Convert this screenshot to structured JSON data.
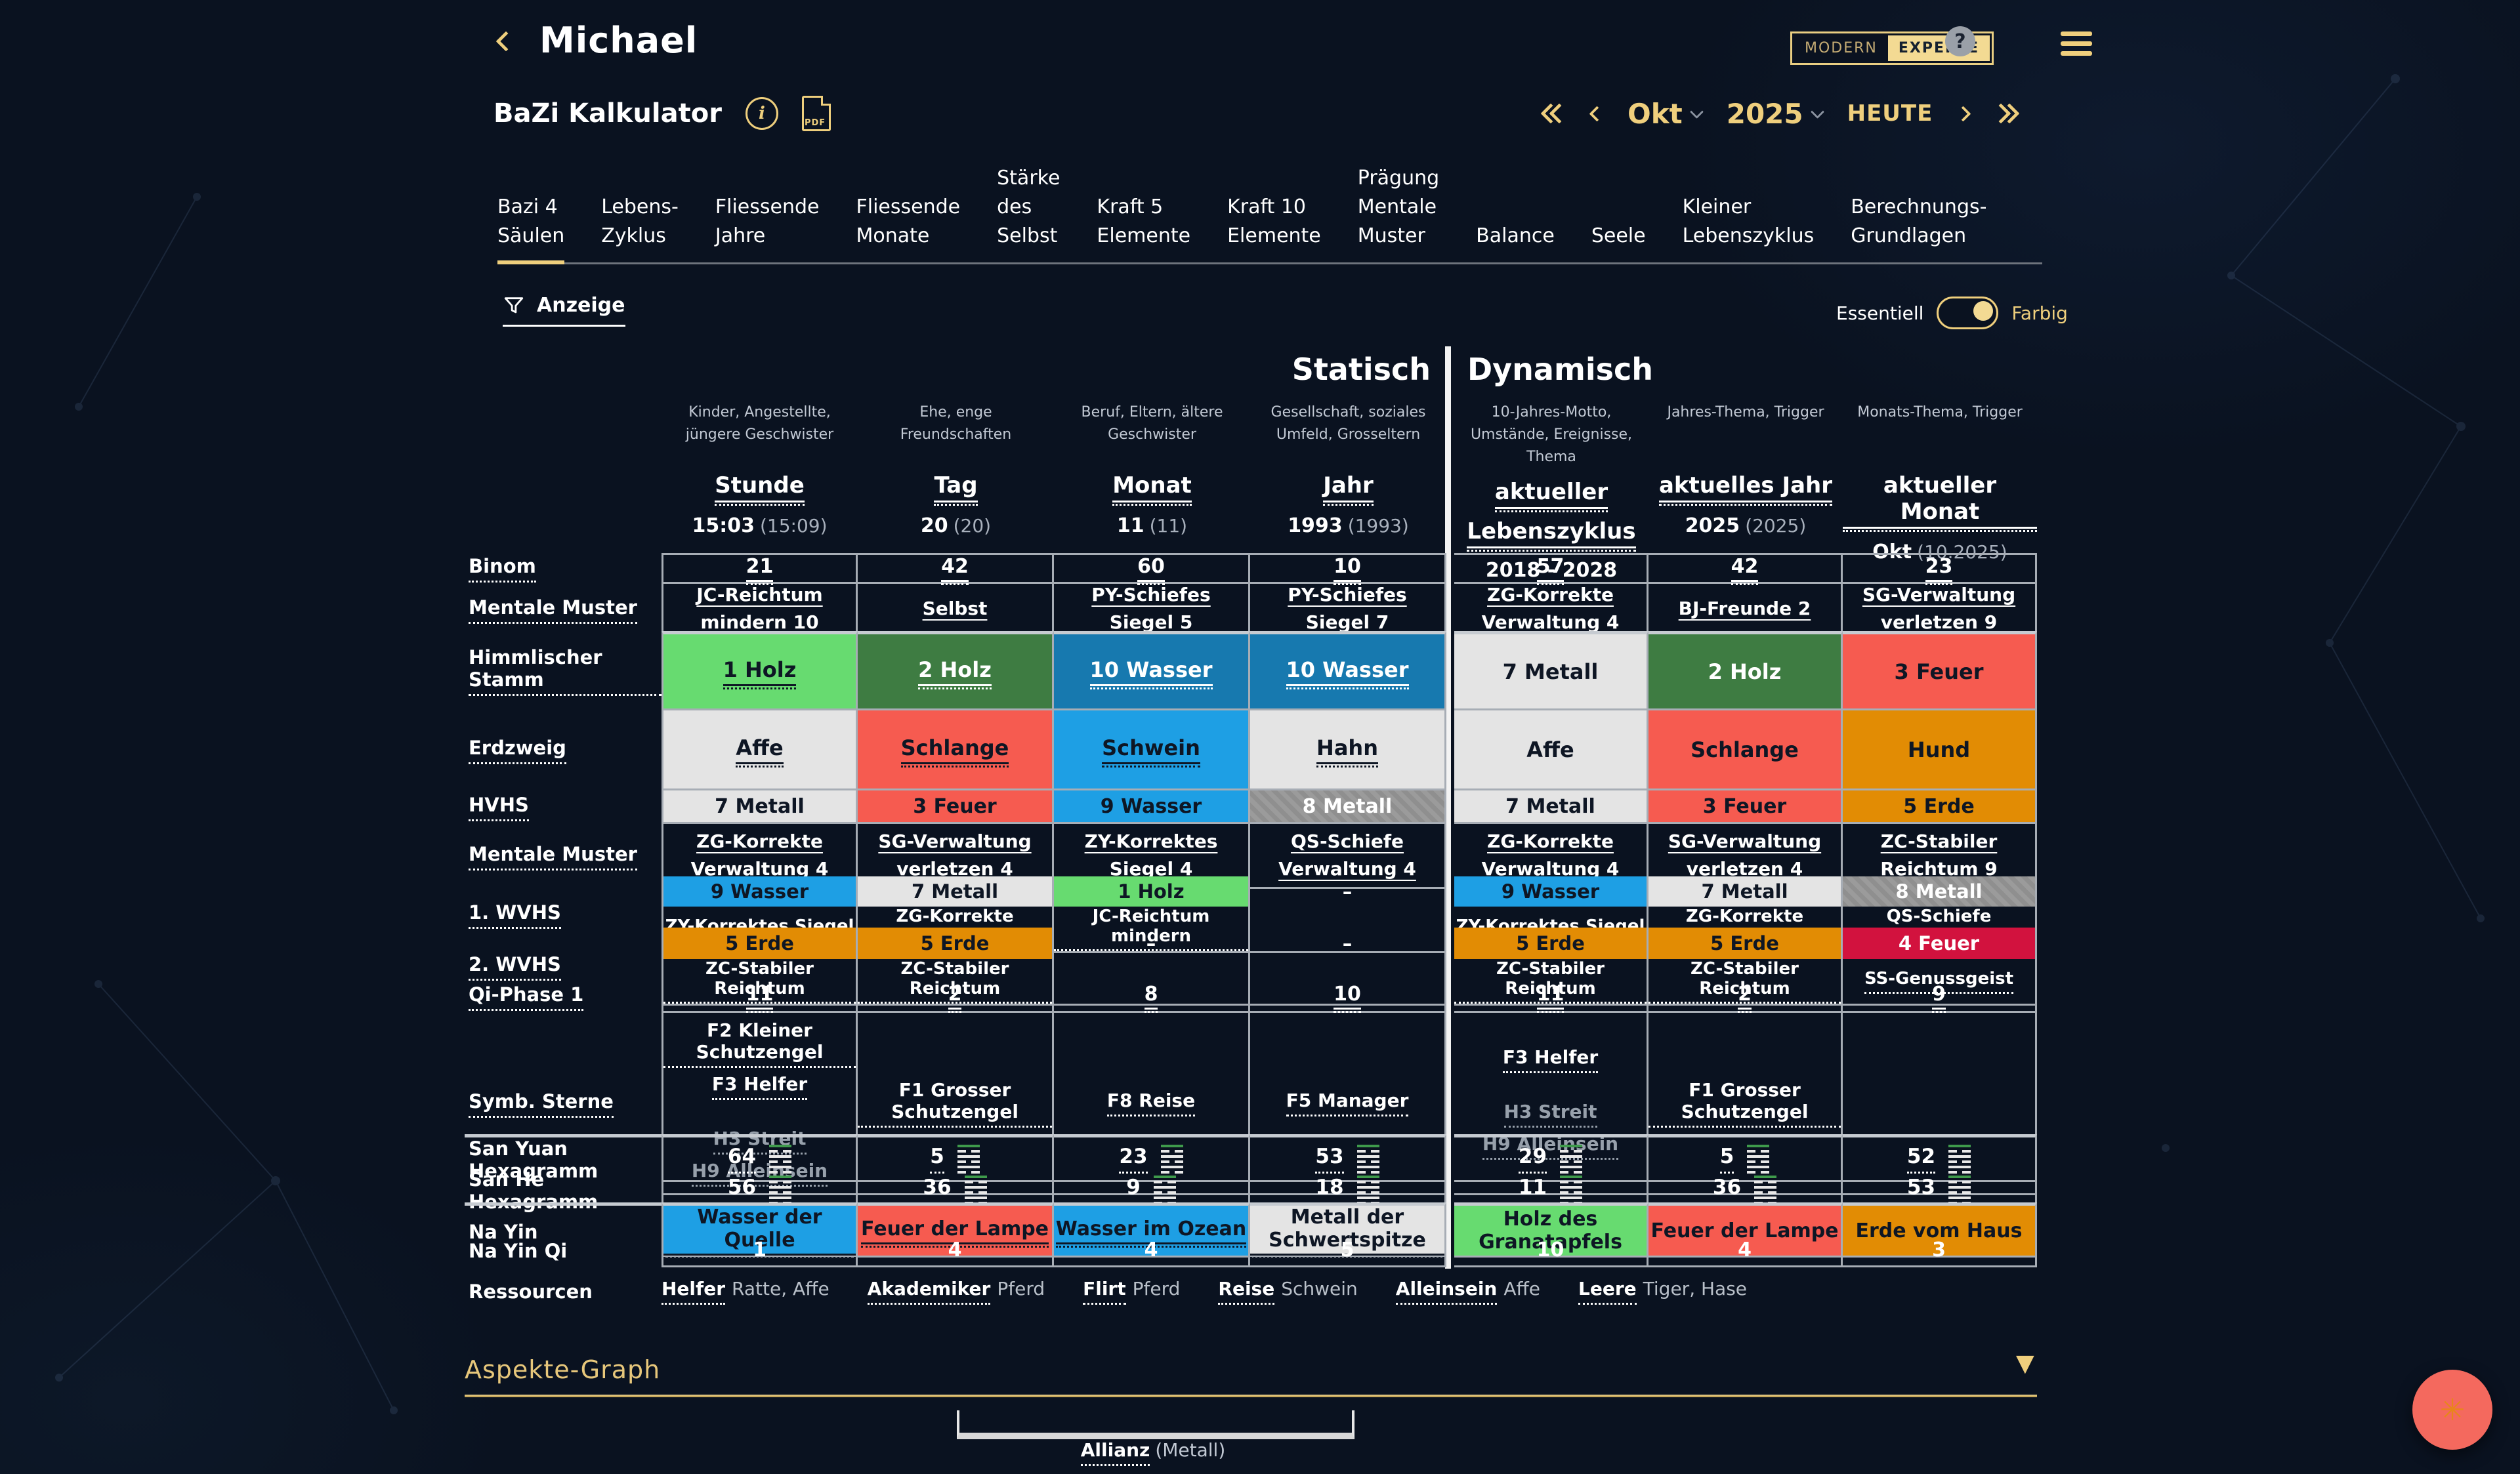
{
  "header": {
    "user_name": "Michael",
    "mode_left": "MODERN",
    "mode_right": "EXPERTE",
    "help": "?"
  },
  "toolbar": {
    "title": "BaZi Kalkulator",
    "info": "i",
    "pdf_label": "PDF",
    "month": "Okt",
    "year": "2025",
    "today": "HEUTE"
  },
  "tabs": [
    {
      "label": "Bazi 4\nSäulen",
      "active": true
    },
    {
      "label": "Lebens-\nZyklus",
      "active": false
    },
    {
      "label": "Fliessende\nJahre",
      "active": false
    },
    {
      "label": "Fliessende\nMonate",
      "active": false
    },
    {
      "label": "Stärke\ndes\nSelbst",
      "active": false
    },
    {
      "label": "Kraft 5\nElemente",
      "active": false
    },
    {
      "label": "Kraft 10\nElemente",
      "active": false
    },
    {
      "label": "Prägung\nMentale\nMuster",
      "active": false
    },
    {
      "label": "Balance",
      "active": false
    },
    {
      "label": "Seele",
      "active": false
    },
    {
      "label": "Kleiner\nLebenszyklus",
      "active": false
    },
    {
      "label": "Berechnungs-\nGrundlagen",
      "active": false
    }
  ],
  "filter_label": "Anzeige",
  "view_toggle": {
    "left": "Essentiell",
    "right": "Farbig",
    "selected": "Farbig"
  },
  "sections": {
    "static": "Statisch",
    "dynamic": "Dynamisch"
  },
  "columns": [
    {
      "group": "static",
      "desc": "Kinder, Angestellte, jüngere Geschwister",
      "title_lines": [
        "Stunde"
      ],
      "value": "15:03",
      "paren": "(15:09)"
    },
    {
      "group": "static",
      "desc": "Ehe, enge Freundschaften",
      "title_lines": [
        "Tag"
      ],
      "value": "20",
      "paren": "(20)"
    },
    {
      "group": "static",
      "desc": "Beruf, Eltern, ältere Geschwister",
      "title_lines": [
        "Monat"
      ],
      "value": "11",
      "paren": "(11)"
    },
    {
      "group": "static",
      "desc": "Gesellschaft, soziales Umfeld, Grosseltern",
      "title_lines": [
        "Jahr"
      ],
      "value": "1993",
      "paren": "(1993)"
    },
    {
      "group": "dynamic",
      "desc": "10-Jahres-Motto, Umstände, Ereignisse, Thema",
      "title_lines": [
        "aktueller",
        "Lebenszyklus"
      ],
      "range": "2018 - 2028"
    },
    {
      "group": "dynamic",
      "desc": "Jahres-Thema, Trigger",
      "title_lines": [
        "aktuelles Jahr"
      ],
      "value": "2025",
      "paren": "(2025)"
    },
    {
      "group": "dynamic",
      "desc": "Monats-Thema, Trigger",
      "title_lines": [
        "aktueller Monat"
      ],
      "value": "Okt",
      "paren": "(10.2025)"
    }
  ],
  "palette": {
    "gold": "#EFCF7D",
    "light_green": "#67DB70",
    "dark_green": "#3E7C42",
    "teal": "#1779AF",
    "blue": "#1E9FE4",
    "light_gray": "#E4E4E4",
    "gray": "#8E8E8E",
    "red": "#F65B50",
    "orange": "#E28C04",
    "crimson": "#D2123E"
  },
  "table": {
    "rows": [
      {
        "label": "Binom",
        "lu": true,
        "type": "plain",
        "h": 37,
        "u": true,
        "cells": [
          "21",
          "42",
          "60",
          "10",
          "57",
          "42",
          "23"
        ]
      },
      {
        "label": "Mentale Muster",
        "lu": true,
        "type": "text",
        "h": 82,
        "cells": [
          "JC-Reichtum mindern 10",
          "Selbst",
          "PY-Schiefes Siegel 5",
          "PY-Schiefes Siegel 7",
          "ZG-Korrekte Verwaltung 4",
          "BJ-Freunde 2",
          "SG-Verwaltung verletzen 9"
        ]
      },
      {
        "label": "Himmlischer Stamm",
        "lu": true,
        "type": "element",
        "h": 121,
        "big": true,
        "sep": "data",
        "cells": [
          {
            "text": "1 Holz",
            "bg": "#67DB70",
            "fg": "#0E1624",
            "u": true
          },
          {
            "text": "2 Holz",
            "bg": "#3E7C42",
            "fg": "#FFFFFF",
            "u": true
          },
          {
            "text": "10 Wasser",
            "bg": "#1779AF",
            "fg": "#FFFFFF",
            "u": true
          },
          {
            "text": "10 Wasser",
            "bg": "#1779AF",
            "fg": "#FFFFFF",
            "u": true
          },
          {
            "text": "7 Metall",
            "bg": "#E4E4E4",
            "fg": "#0E1624"
          },
          {
            "text": "2 Holz",
            "bg": "#3E7C42",
            "fg": "#FFFFFF"
          },
          {
            "text": "3 Feuer",
            "bg": "#F65B50",
            "fg": "#0E1624"
          }
        ]
      },
      {
        "label": "Erdzweig",
        "lu": true,
        "type": "element",
        "h": 122,
        "big": true,
        "cells": [
          {
            "text": "Affe",
            "bg": "#E4E4E4",
            "fg": "#0E1624",
            "u": true
          },
          {
            "text": "Schlange",
            "bg": "#F65B50",
            "fg": "#0E1624",
            "u": true
          },
          {
            "text": "Schwein",
            "bg": "#1E9FE4",
            "fg": "#0E1624",
            "u": true
          },
          {
            "text": "Hahn",
            "bg": "#E4E4E4",
            "fg": "#0E1624",
            "u": true
          },
          {
            "text": "Affe",
            "bg": "#E4E4E4",
            "fg": "#0E1624"
          },
          {
            "text": "Schlange",
            "bg": "#F65B50",
            "fg": "#0E1624"
          },
          {
            "text": "Hund",
            "bg": "#E28C04",
            "fg": "#0E1624"
          }
        ]
      },
      {
        "label": "HVHS",
        "lu": true,
        "type": "element",
        "h": 51,
        "cells": [
          {
            "text": "7 Metall",
            "bg": "#E4E4E4",
            "fg": "#0E1624"
          },
          {
            "text": "3 Feuer",
            "bg": "#F65B50",
            "fg": "#0E1624"
          },
          {
            "text": "9 Wasser",
            "bg": "#1E9FE4",
            "fg": "#0E1624"
          },
          {
            "text": "8 Metall",
            "bg": "#8E8E8E",
            "fg": "#FFFFFF",
            "hatch": true
          },
          {
            "text": "7 Metall",
            "bg": "#E4E4E4",
            "fg": "#0E1624"
          },
          {
            "text": "3 Feuer",
            "bg": "#F65B50",
            "fg": "#0E1624"
          },
          {
            "text": "5 Erde",
            "bg": "#E28C04",
            "fg": "#0E1624"
          }
        ]
      },
      {
        "label": "Mentale Muster",
        "lu": true,
        "type": "text",
        "h": 80,
        "cells": [
          "ZG-Korrekte Verwaltung 4",
          "SG-Verwaltung verletzen 4",
          "ZY-Korrektes Siegel 4",
          "QS-Schiefe Verwaltung 4",
          "ZG-Korrekte Verwaltung 4",
          "SG-Verwaltung verletzen 4",
          "ZC-Stabiler Reichtum 9"
        ]
      },
      {
        "label": "1. WVHS",
        "lu": true,
        "type": "wvhs",
        "h": 78,
        "vh": 46,
        "cells": [
          {
            "value": {
              "text": "9 Wasser",
              "bg": "#1E9FE4",
              "fg": "#0E1624"
            },
            "label": "ZY-Korrektes Siegel"
          },
          {
            "value": {
              "text": "7 Metall",
              "bg": "#E4E4E4",
              "fg": "#0E1624"
            },
            "label": "ZG-Korrekte Verwaltung"
          },
          {
            "value": {
              "text": "1 Holz",
              "bg": "#67DB70",
              "fg": "#0E1624"
            },
            "label": "JC-Reichtum mindern"
          },
          {
            "value": {
              "text": "–"
            },
            "label": ""
          },
          {
            "value": {
              "text": "9 Wasser",
              "bg": "#1E9FE4",
              "fg": "#0E1624"
            },
            "label": "ZY-Korrektes Siegel"
          },
          {
            "value": {
              "text": "7 Metall",
              "bg": "#E4E4E4",
              "fg": "#0E1624"
            },
            "label": "ZG-Korrekte Verwaltung"
          },
          {
            "value": {
              "text": "8 Metall",
              "bg": "#8E8E8E",
              "fg": "#FFFFFF",
              "hatch": true
            },
            "label": "QS-Schiefe Verwaltung"
          }
        ]
      },
      {
        "label": "2. WVHS",
        "lu": true,
        "type": "wvhs",
        "h": 82,
        "vh": 48,
        "cells": [
          {
            "value": {
              "text": "5 Erde",
              "bg": "#E28C04",
              "fg": "#0E1624"
            },
            "label": "ZC-Stabiler Reichtum"
          },
          {
            "value": {
              "text": "5 Erde",
              "bg": "#E28C04",
              "fg": "#0E1624"
            },
            "label": "ZC-Stabiler Reichtum"
          },
          {
            "value": {
              "text": "–"
            },
            "label": ""
          },
          {
            "value": {
              "text": "–"
            },
            "label": ""
          },
          {
            "value": {
              "text": "5 Erde",
              "bg": "#E28C04",
              "fg": "#0E1624"
            },
            "label": "ZC-Stabiler Reichtum"
          },
          {
            "value": {
              "text": "5 Erde",
              "bg": "#E28C04",
              "fg": "#0E1624"
            },
            "label": "ZC-Stabiler Reichtum"
          },
          {
            "value": {
              "text": "4 Feuer",
              "bg": "#D2123E",
              "fg": "#FFFFFF"
            },
            "label": "SS-Genussgeist"
          }
        ]
      },
      {
        "label": "Qi-Phase 1",
        "lu": true,
        "type": "plain",
        "h": 48,
        "u": true,
        "cells": [
          "11",
          "2",
          "8",
          "10",
          "11",
          "2",
          "9"
        ]
      },
      {
        "label": "Symb. Sterne",
        "lu": true,
        "type": "stars",
        "h": 185,
        "cells": [
          [
            {
              "t": "F2 Kleiner Schutzengel"
            },
            {
              "t": "F3 Helfer"
            },
            {
              "sp": true
            },
            {
              "t": "H3 Streit",
              "dim": true
            },
            {
              "t": "H9 Alleinsein",
              "dim": true
            }
          ],
          [
            {
              "t": "F1 Grosser Schutzengel"
            }
          ],
          [
            {
              "t": "F8 Reise"
            }
          ],
          [
            {
              "t": "F5 Manager"
            }
          ],
          [
            {
              "t": "F3 Helfer"
            },
            {
              "sp": true
            },
            {
              "t": "H3 Streit",
              "dim": true
            },
            {
              "t": "H9 Alleinsein",
              "dim": true
            }
          ],
          [
            {
              "t": "F1 Grosser Schutzengel"
            }
          ],
          []
        ]
      },
      {
        "label": "San Yuan Hexagramm",
        "lu": false,
        "type": "hex",
        "h": 52,
        "sep": "full",
        "cells": [
          "64",
          "5",
          "23",
          "53",
          "29",
          "5",
          "52"
        ]
      },
      {
        "label": "San He Hexagramm",
        "lu": false,
        "type": "hex",
        "h": 52,
        "cells": [
          "56",
          "36",
          "9",
          "18",
          "11",
          "36",
          "53"
        ]
      },
      {
        "label": "Na Yin",
        "lu": false,
        "type": "element",
        "h": 48,
        "sep": "full",
        "cells": [
          {
            "text": "Wasser der Quelle",
            "bg": "#1E9FE4",
            "fg": "#0E1624",
            "u": true
          },
          {
            "text": "Feuer der Lampe",
            "bg": "#F65B50",
            "fg": "#0E1624",
            "u": true
          },
          {
            "text": "Wasser im Ozean",
            "bg": "#1E9FE4",
            "fg": "#0E1624",
            "u": true
          },
          {
            "text": "Metall der Schwertspitze",
            "bg": "#E4E4E4",
            "fg": "#0E1624",
            "u": true
          },
          {
            "text": "Holz des Granatapfels",
            "bg": "#67DB70",
            "fg": "#0E1624"
          },
          {
            "text": "Feuer der Lampe",
            "bg": "#F65B50",
            "fg": "#0E1624"
          },
          {
            "text": "Erde vom Haus",
            "bg": "#E28C04",
            "fg": "#0E1624"
          }
        ]
      },
      {
        "label": "Na Yin Qi",
        "lu": false,
        "type": "plain",
        "h": 51,
        "u": false,
        "cells": [
          "1",
          "4",
          "4",
          "5",
          "10",
          "4",
          "3"
        ]
      }
    ]
  },
  "resources": {
    "label": "Ressourcen",
    "items": [
      {
        "key": "Helfer",
        "value": "Ratte, Affe"
      },
      {
        "key": "Akademiker",
        "value": "Pferd"
      },
      {
        "key": "Flirt",
        "value": "Pferd"
      },
      {
        "key": "Reise",
        "value": "Schwein"
      },
      {
        "key": "Alleinsein",
        "value": "Affe"
      },
      {
        "key": "Leere",
        "value": "Tiger, Hase"
      }
    ]
  },
  "footer": {
    "aspekte_title": "Aspekte-Graph",
    "allianz": "Allianz",
    "allianz_paren": "(Metall)"
  }
}
